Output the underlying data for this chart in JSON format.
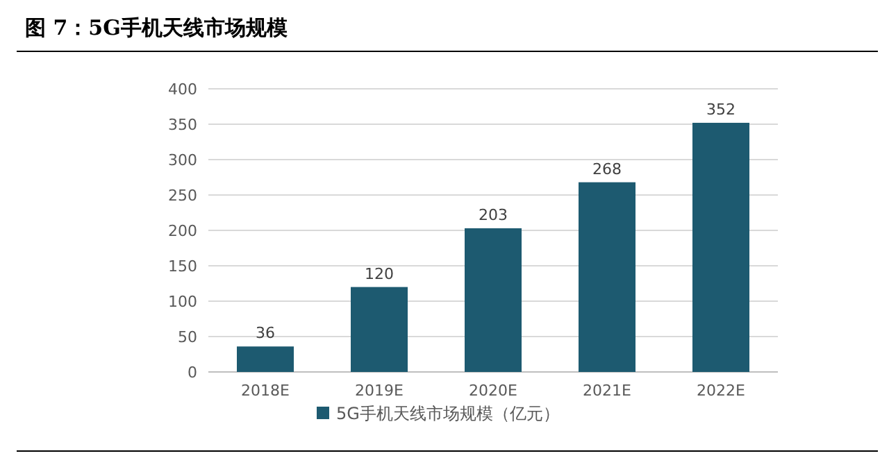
{
  "chart_data": {
    "type": "bar",
    "title": "图 7：5G手机天线市场规模",
    "categories": [
      "2018E",
      "2019E",
      "2020E",
      "2021E",
      "2022E"
    ],
    "series": [
      {
        "name": "5G手机天线市场规模（亿元）",
        "color": "#1d5a70",
        "values": [
          36,
          120,
          203,
          268,
          352
        ]
      }
    ],
    "ylim": [
      0,
      400
    ],
    "yticks": [
      0,
      50,
      100,
      150,
      200,
      250,
      300,
      350,
      400
    ],
    "grid": "y",
    "data_labels": true,
    "legend": "bottom"
  }
}
